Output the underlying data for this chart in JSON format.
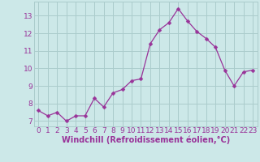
{
  "x": [
    0,
    1,
    2,
    3,
    4,
    5,
    6,
    7,
    8,
    9,
    10,
    11,
    12,
    13,
    14,
    15,
    16,
    17,
    18,
    19,
    20,
    21,
    22,
    23
  ],
  "y": [
    7.6,
    7.3,
    7.5,
    7.0,
    7.3,
    7.3,
    8.3,
    7.8,
    8.6,
    8.8,
    9.3,
    9.4,
    11.4,
    12.2,
    12.6,
    13.4,
    12.7,
    12.1,
    11.7,
    11.2,
    9.9,
    9.0,
    9.8,
    9.9
  ],
  "line_color": "#993399",
  "marker": "D",
  "marker_size": 2.5,
  "bg_color": "#cce8e8",
  "grid_color": "#aacccc",
  "tick_color": "#993399",
  "label_color": "#993399",
  "xlabel": "Windchill (Refroidissement éolien,°C)",
  "ylabel": "",
  "xlim": [
    -0.5,
    23.5
  ],
  "ylim": [
    6.7,
    13.8
  ],
  "yticks": [
    7,
    8,
    9,
    10,
    11,
    12,
    13
  ],
  "xticks": [
    0,
    1,
    2,
    3,
    4,
    5,
    6,
    7,
    8,
    9,
    10,
    11,
    12,
    13,
    14,
    15,
    16,
    17,
    18,
    19,
    20,
    21,
    22,
    23
  ],
  "font_size": 6.5,
  "xlabel_fontsize": 7.0
}
